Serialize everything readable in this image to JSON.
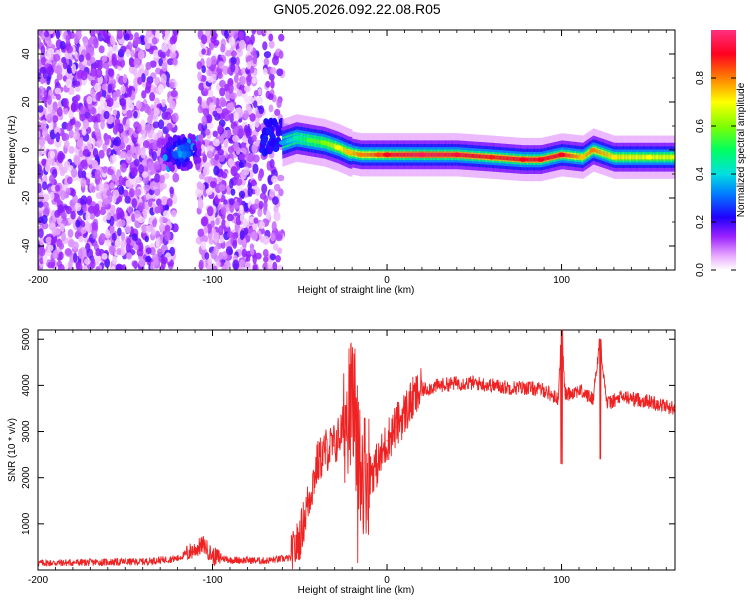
{
  "title": "GN05.2026.092.22.08.R05",
  "chart_data": [
    {
      "type": "heatmap",
      "xlabel": "Height of straight line (km)",
      "ylabel": "Frequency (Hz)",
      "xlim": [
        -200,
        165
      ],
      "ylim": [
        -50,
        50
      ],
      "xticks": [
        -200,
        -100,
        0,
        100
      ],
      "yticks": [
        -40,
        -20,
        0,
        20,
        40
      ],
      "colorbar": {
        "label": "Normalized spectral amplitude",
        "range": [
          0,
          1
        ],
        "ticks": [
          "0.0",
          "0.2",
          "0.4",
          "0.6",
          "0.8"
        ],
        "colors": [
          "#ffffff",
          "#e080ff",
          "#8000ff",
          "#0000ff",
          "#00c0ff",
          "#00ff80",
          "#80ff00",
          "#ffff00",
          "#ff8000",
          "#ff0040",
          "#ff4080"
        ]
      },
      "regions": [
        {
          "name": "noise",
          "x_range": [
            -200,
            -60
          ],
          "freq_range": [
            -50,
            50
          ],
          "amplitude": 0.1
        },
        {
          "name": "gap",
          "x_range": [
            -121,
            -108
          ],
          "amplitude": 0.0
        },
        {
          "name": "noise-cluster",
          "x": -118,
          "freq": -1,
          "amplitude": 0.25
        }
      ],
      "ridge": [
        {
          "x": -60,
          "freq": 3,
          "amplitude": 0.35
        },
        {
          "x": -52,
          "freq": 5,
          "amplitude": 0.45
        },
        {
          "x": -44,
          "freq": 4,
          "amplitude": 0.55
        },
        {
          "x": -36,
          "freq": 3,
          "amplitude": 0.6
        },
        {
          "x": -28,
          "freq": 1,
          "amplitude": 0.7
        },
        {
          "x": -22,
          "freq": -1,
          "amplitude": 0.75
        },
        {
          "x": -15,
          "freq": -2,
          "amplitude": 0.8
        },
        {
          "x": -5,
          "freq": -2,
          "amplitude": 0.85
        },
        {
          "x": 0,
          "freq": -2,
          "amplitude": 0.9
        },
        {
          "x": 20,
          "freq": -2,
          "amplitude": 0.95
        },
        {
          "x": 40,
          "freq": -2,
          "amplitude": 0.92
        },
        {
          "x": 60,
          "freq": -3,
          "amplitude": 0.88
        },
        {
          "x": 78,
          "freq": -4,
          "amplitude": 0.9
        },
        {
          "x": 88,
          "freq": -4,
          "amplitude": 0.9
        },
        {
          "x": 100,
          "freq": -2,
          "amplitude": 0.9
        },
        {
          "x": 112,
          "freq": -3,
          "amplitude": 0.75
        },
        {
          "x": 118,
          "freq": 0,
          "amplitude": 0.8
        },
        {
          "x": 130,
          "freq": -3,
          "amplitude": 0.72
        },
        {
          "x": 150,
          "freq": -3,
          "amplitude": 0.7
        },
        {
          "x": 165,
          "freq": -3,
          "amplitude": 0.68
        }
      ]
    },
    {
      "type": "line",
      "xlabel": "Height of straight line (km)",
      "ylabel": "SNR (10 * v/v)",
      "xlim": [
        -200,
        165
      ],
      "ylim": [
        0,
        5200
      ],
      "xticks": [
        -200,
        -100,
        0,
        100
      ],
      "yticks": [
        1000,
        2000,
        3000,
        4000,
        5000
      ],
      "series": [
        {
          "name": "SNR",
          "color": "#ee2222",
          "x": [
            -200,
            -180,
            -160,
            -140,
            -120,
            -110,
            -105,
            -100,
            -90,
            -70,
            -55,
            -50,
            -45,
            -40,
            -35,
            -30,
            -25,
            -20,
            -18,
            -15,
            -10,
            -5,
            0,
            5,
            10,
            15,
            20,
            25,
            30,
            40,
            50,
            60,
            70,
            80,
            90,
            98,
            100,
            102,
            110,
            118,
            122,
            126,
            135,
            150,
            165
          ],
          "y": [
            150,
            160,
            170,
            180,
            250,
            450,
            550,
            300,
            220,
            200,
            260,
            700,
            1500,
            2300,
            2600,
            2700,
            3100,
            3800,
            2900,
            2200,
            2100,
            2300,
            2800,
            3100,
            3400,
            3700,
            3900,
            3950,
            4000,
            4050,
            4050,
            4000,
            3950,
            3950,
            3900,
            3700,
            5200,
            3800,
            3900,
            3700,
            5000,
            3600,
            3750,
            3650,
            3500
          ]
        }
      ]
    }
  ]
}
